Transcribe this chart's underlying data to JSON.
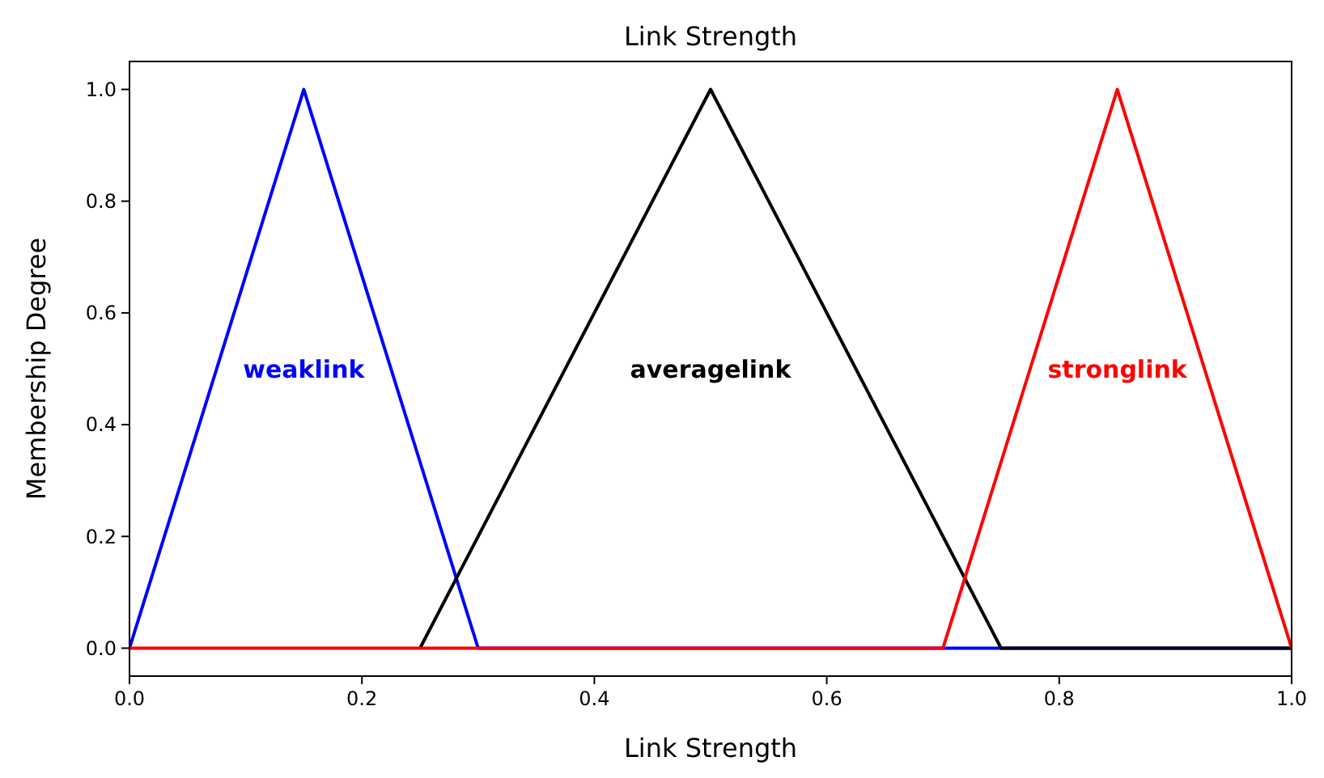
{
  "chart_data": {
    "type": "line",
    "title": "Link Strength",
    "xlabel": "Link Strength",
    "ylabel": "Membership Degree",
    "xlim": [
      0,
      1
    ],
    "ylim": [
      -0.05,
      1.05
    ],
    "xticks": [
      {
        "value": 0,
        "label": "0.0"
      },
      0.2,
      0.4,
      0.6,
      0.8,
      {
        "value": 1,
        "label": "1.0"
      }
    ],
    "yticks": [
      {
        "value": 0,
        "label": "0.0"
      },
      0.2,
      0.4,
      0.6,
      0.8,
      {
        "value": 1,
        "label": "1.0"
      }
    ],
    "grid": false,
    "marker": "none",
    "line_style": "solid",
    "series": [
      {
        "name": "weaklink",
        "color": "#0000ff",
        "x": [
          0,
          0.15,
          0.3,
          1
        ],
        "values": [
          0,
          1,
          0,
          0
        ]
      },
      {
        "name": "averagelink",
        "color": "#000000",
        "x": [
          0.25,
          0.5,
          0.75,
          1
        ],
        "values": [
          0,
          1,
          0,
          0
        ]
      },
      {
        "name": "stronglink",
        "color": "#ff0000",
        "x": [
          0,
          0.7,
          0.85,
          1
        ],
        "values": [
          0,
          0,
          1,
          0
        ]
      }
    ]
  }
}
